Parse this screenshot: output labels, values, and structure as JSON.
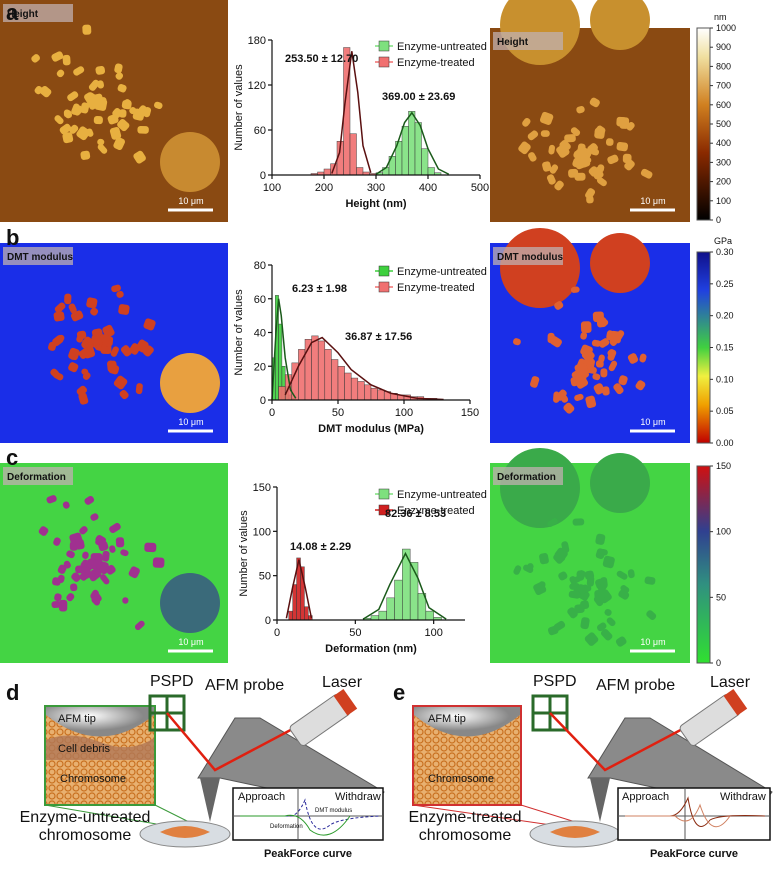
{
  "panel_labels": [
    "a",
    "b",
    "c",
    "d",
    "e"
  ],
  "images": [
    {
      "left_label": "Height",
      "right_label": "Height",
      "scale_bar": "10 μm"
    },
    {
      "left_label": "DMT modulus",
      "right_label": "DMT modulus",
      "scale_bar": "10 μm"
    },
    {
      "left_label": "Deformation",
      "right_label": "Deformation",
      "scale_bar": "10 μm"
    }
  ],
  "colorbars": [
    {
      "unit": "nm",
      "ticks": [
        0,
        100,
        200,
        300,
        400,
        500,
        600,
        700,
        800,
        900,
        1000
      ]
    },
    {
      "unit": "GPa",
      "ticks": [
        {
          "value": 0,
          "label": "0.00"
        },
        {
          "value": 0.05,
          "label": "0.05"
        },
        {
          "value": 0.1,
          "label": "0.10"
        },
        {
          "value": 0.15,
          "label": "0.15"
        },
        {
          "value": 0.2,
          "label": "0.20"
        },
        {
          "value": 0.25,
          "label": "0.25"
        },
        {
          "value": 0.3,
          "label": "0.30"
        }
      ]
    },
    {
      "ticks": [
        0,
        50,
        100,
        150
      ]
    }
  ],
  "chart_data": [
    {
      "type": "histogram",
      "xlabel": "Height (nm)",
      "ylabel": "Number of values",
      "xlim": [
        100,
        500
      ],
      "xticks": [
        100,
        200,
        300,
        400,
        500
      ],
      "ylim": [
        0,
        180
      ],
      "yticks": [
        0,
        60,
        120,
        180
      ],
      "series": [
        {
          "name": "Enzyme-untreated",
          "color": "#7ee07e",
          "bins": [
            300,
            312.5,
            325,
            337.5,
            350,
            362.5,
            375,
            387.5,
            400,
            412.5,
            425
          ],
          "values": [
            3,
            10,
            25,
            45,
            65,
            85,
            70,
            35,
            10,
            3
          ]
        },
        {
          "name": "Enzyme-treated",
          "color": "#f07070",
          "bins": [
            175,
            187.5,
            200,
            212.5,
            225,
            237.5,
            250,
            262.5,
            275,
            287.5,
            300
          ],
          "values": [
            2,
            4,
            8,
            15,
            45,
            170,
            55,
            10,
            4,
            2
          ]
        }
      ],
      "fits": [
        {
          "color": "#1a5a1a",
          "x": [
            300,
            320,
            340,
            355,
            369,
            385,
            400,
            420,
            440
          ],
          "values": [
            1,
            10,
            39,
            70,
            83,
            66,
            35,
            8,
            1
          ]
        },
        {
          "color": "#5a1010",
          "x": [
            215,
            230,
            240,
            253.5,
            265,
            275,
            290
          ],
          "values": [
            2,
            30,
            94,
            165,
            110,
            39,
            3
          ]
        }
      ],
      "annotations": [
        "253.50 ± 12.70",
        "369.00 ± 23.69"
      ]
    },
    {
      "type": "histogram",
      "xlabel": "DMT modulus (MPa)",
      "ylabel": "Number of values",
      "xlim": [
        0,
        150
      ],
      "xticks": [
        0,
        50,
        100,
        150
      ],
      "ylim": [
        0,
        80
      ],
      "yticks": [
        0,
        20,
        40,
        60,
        80
      ],
      "series": [
        {
          "name": "Enzyme-untreated",
          "color": "#3ed03e",
          "bins": [
            0,
            2.5,
            5,
            7.5,
            10,
            12.5,
            15,
            17.5
          ],
          "values": [
            25,
            62,
            45,
            20,
            8,
            3,
            1
          ]
        },
        {
          "name": "Enzyme-treated",
          "color": "#f07070",
          "bins": [
            5,
            10,
            15,
            20,
            25,
            30,
            35,
            40,
            45,
            50,
            55,
            60,
            65,
            70,
            75,
            80,
            85,
            90,
            95,
            100,
            105,
            110,
            115,
            120,
            125
          ],
          "values": [
            8,
            15,
            22,
            30,
            36,
            38,
            35,
            30,
            24,
            20,
            16,
            13,
            11,
            9,
            7,
            6,
            5,
            4,
            3,
            3,
            2,
            2,
            1,
            1
          ]
        }
      ],
      "fits": [
        {
          "color": "#1a5a1a",
          "x": [
            0,
            3,
            5,
            7,
            10,
            14,
            18
          ],
          "values": [
            0,
            40,
            60,
            50,
            25,
            6,
            1
          ]
        },
        {
          "color": "#5a1010",
          "x": [
            10,
            20,
            30,
            38,
            50,
            60,
            75,
            90,
            110,
            130
          ],
          "values": [
            3,
            20,
            34,
            37,
            28,
            18,
            9,
            4,
            1,
            0.3
          ]
        }
      ],
      "annotations": [
        "6.23 ± 1.98",
        "36.87 ± 17.56"
      ]
    },
    {
      "type": "histogram",
      "xlabel": "Deformation (nm)",
      "ylabel": "Number of values",
      "xlim": [
        0,
        120
      ],
      "xticks": [
        0,
        50,
        100
      ],
      "ylim": [
        0,
        150
      ],
      "yticks": [
        0,
        50,
        100,
        150
      ],
      "series": [
        {
          "name": "Enzyme-untreated",
          "color": "#7ee07e",
          "bins": [
            55,
            60,
            65,
            70,
            75,
            80,
            85,
            90,
            95,
            100,
            105
          ],
          "values": [
            2,
            5,
            10,
            25,
            45,
            80,
            65,
            30,
            10,
            3
          ]
        },
        {
          "name": "Enzyme-treated",
          "color": "#d02020",
          "bins": [
            7.5,
            10,
            12.5,
            15,
            17.5,
            20,
            22.5
          ],
          "values": [
            10,
            40,
            70,
            60,
            15,
            5
          ]
        }
      ],
      "fits": [
        {
          "color": "#1a5a1a",
          "x": [
            55,
            65,
            72,
            82,
            90,
            97,
            108
          ],
          "values": [
            1,
            12,
            40,
            75,
            47,
            14,
            1
          ]
        },
        {
          "color": "#5a1010",
          "x": [
            6,
            10,
            14,
            18,
            22
          ],
          "values": [
            2,
            37,
            68,
            37,
            2
          ]
        }
      ],
      "annotations": [
        "14.08 ± 2.29",
        "82.36 ± 8.53"
      ]
    }
  ],
  "schematics": [
    {
      "pspd": "PSPD",
      "probe": "AFM probe",
      "laser": "Laser",
      "tip": "AFM tip",
      "debris": "Cell debris",
      "chromosome": "Chromosome",
      "title_lines": [
        "Enzyme-untreated",
        "chromosome"
      ],
      "approach": "Approach",
      "withdraw": "Withdraw",
      "deformation": "Deformation",
      "dmt": "DMT modulus",
      "curve_title": "PeakForce curve"
    },
    {
      "pspd": "PSPD",
      "probe": "AFM probe",
      "laser": "Laser",
      "tip": "AFM tip",
      "chromosome": "Chromosome",
      "title_lines": [
        "Enzyme-treated",
        "chromosome"
      ],
      "approach": "Approach",
      "withdraw": "Withdraw",
      "curve_title": "PeakForce curve"
    }
  ]
}
